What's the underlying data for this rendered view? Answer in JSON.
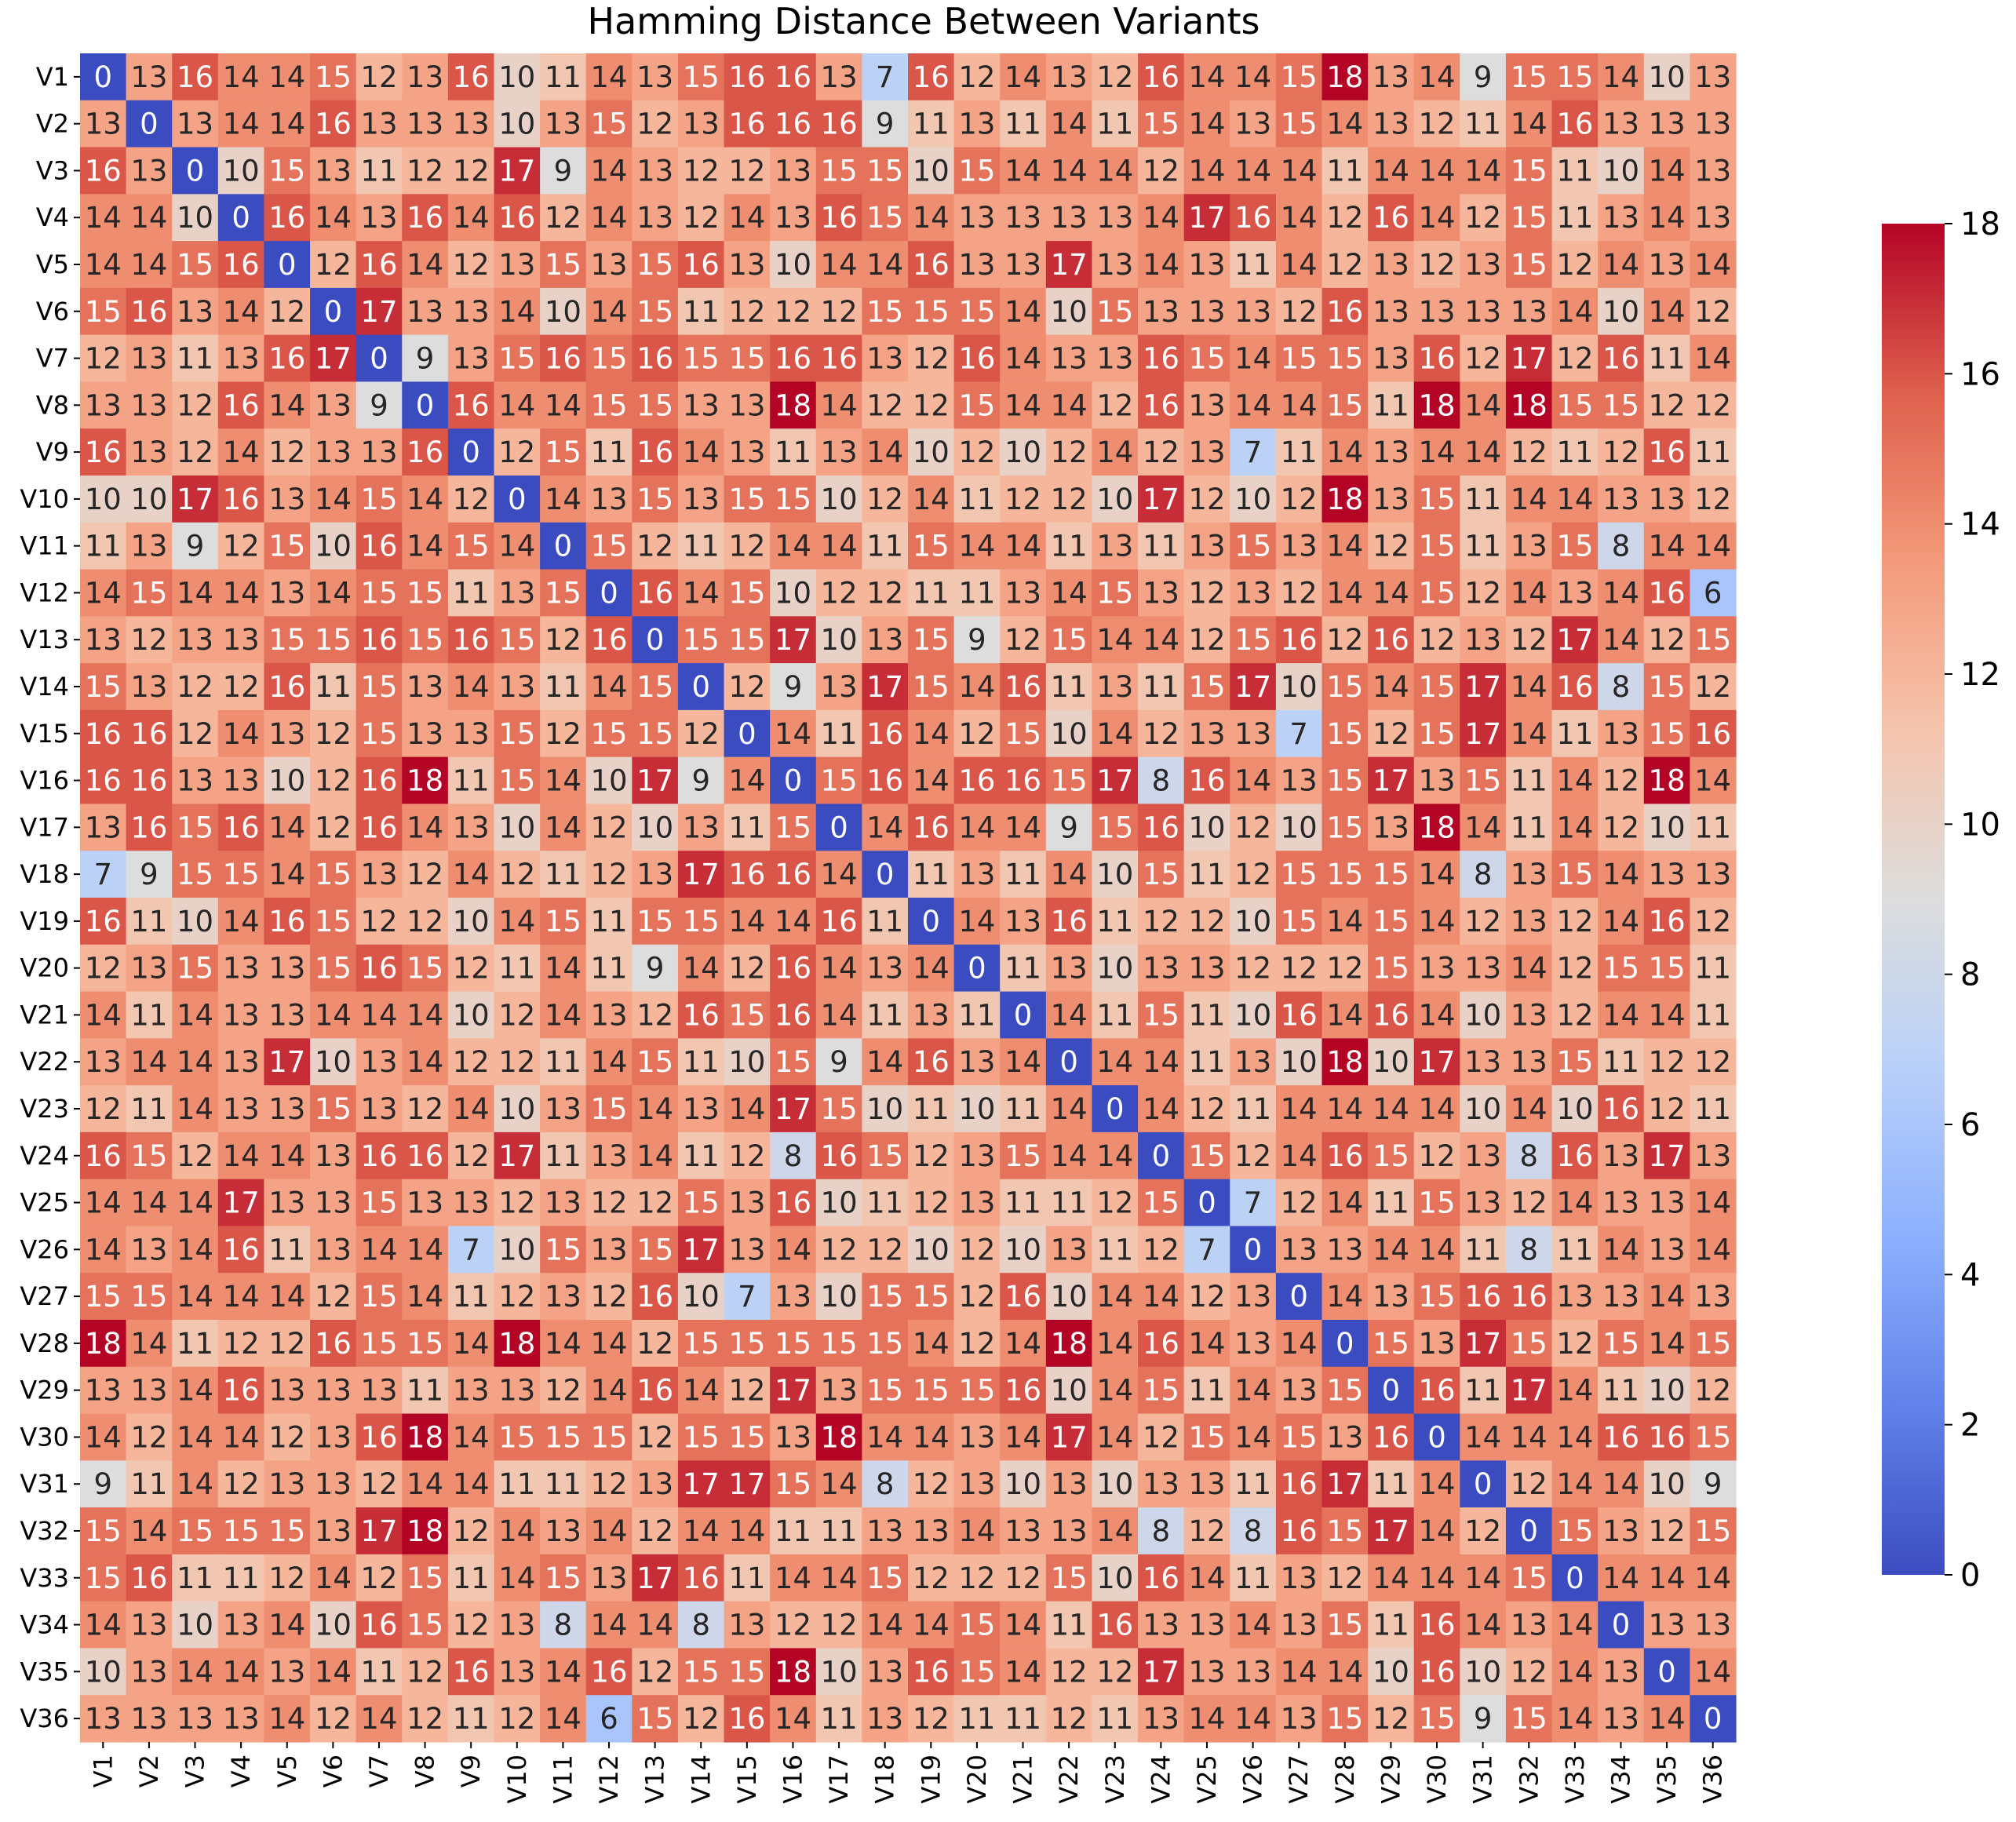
{
  "chart_data": {
    "type": "heatmap",
    "title": "Hamming Distance Between Variants",
    "xlabel": "",
    "ylabel": "",
    "rows": [
      "V1",
      "V2",
      "V3",
      "V4",
      "V5",
      "V6",
      "V7",
      "V8",
      "V9",
      "V10",
      "V11",
      "V12",
      "V13",
      "V14",
      "V15",
      "V16",
      "V17",
      "V18",
      "V19",
      "V20",
      "V21",
      "V22",
      "V23",
      "V24",
      "V25",
      "V26",
      "V27",
      "V28",
      "V29",
      "V30",
      "V31",
      "V32",
      "V33",
      "V34",
      "V35",
      "V36"
    ],
    "columns": [
      "V1",
      "V2",
      "V3",
      "V4",
      "V5",
      "V6",
      "V7",
      "V8",
      "V9",
      "V10",
      "V11",
      "V12",
      "V13",
      "V14",
      "V15",
      "V16",
      "V17",
      "V18",
      "V19",
      "V20",
      "V21",
      "V22",
      "V23",
      "V24",
      "V25",
      "V26",
      "V27",
      "V28",
      "V29",
      "V30",
      "V31",
      "V32",
      "V33",
      "V34",
      "V35",
      "V36"
    ],
    "values": [
      [
        0,
        13,
        16,
        14,
        14,
        15,
        12,
        13,
        16,
        10,
        11,
        14,
        13,
        15,
        16,
        16,
        13,
        7,
        16,
        12,
        14,
        13,
        12,
        16,
        14,
        14,
        15,
        18,
        13,
        14,
        9,
        15,
        15,
        14,
        10,
        13
      ],
      [
        13,
        0,
        13,
        14,
        14,
        16,
        13,
        13,
        13,
        10,
        13,
        15,
        12,
        13,
        16,
        16,
        16,
        9,
        11,
        13,
        11,
        14,
        11,
        15,
        14,
        13,
        15,
        14,
        13,
        12,
        11,
        14,
        16,
        13,
        13,
        13
      ],
      [
        16,
        13,
        0,
        10,
        15,
        13,
        11,
        12,
        12,
        17,
        9,
        14,
        13,
        12,
        12,
        13,
        15,
        15,
        10,
        15,
        14,
        14,
        14,
        12,
        14,
        14,
        14,
        11,
        14,
        14,
        14,
        15,
        11,
        10,
        14,
        13
      ],
      [
        14,
        14,
        10,
        0,
        16,
        14,
        13,
        16,
        14,
        16,
        12,
        14,
        13,
        12,
        14,
        13,
        16,
        15,
        14,
        13,
        13,
        13,
        13,
        14,
        17,
        16,
        14,
        12,
        16,
        14,
        12,
        15,
        11,
        13,
        14,
        13
      ],
      [
        14,
        14,
        15,
        16,
        0,
        12,
        16,
        14,
        12,
        13,
        15,
        13,
        15,
        16,
        13,
        10,
        14,
        14,
        16,
        13,
        13,
        17,
        13,
        14,
        13,
        11,
        14,
        12,
        13,
        12,
        13,
        15,
        12,
        14,
        13,
        14
      ],
      [
        15,
        16,
        13,
        14,
        12,
        0,
        17,
        13,
        13,
        14,
        10,
        14,
        15,
        11,
        12,
        12,
        12,
        15,
        15,
        15,
        14,
        10,
        15,
        13,
        13,
        13,
        12,
        16,
        13,
        13,
        13,
        13,
        14,
        10,
        14,
        12
      ],
      [
        12,
        13,
        11,
        13,
        16,
        17,
        0,
        9,
        13,
        15,
        16,
        15,
        16,
        15,
        15,
        16,
        16,
        13,
        12,
        16,
        14,
        13,
        13,
        16,
        15,
        14,
        15,
        15,
        13,
        16,
        12,
        17,
        12,
        16,
        11,
        14
      ],
      [
        13,
        13,
        12,
        16,
        14,
        13,
        9,
        0,
        16,
        14,
        14,
        15,
        15,
        13,
        13,
        18,
        14,
        12,
        12,
        15,
        14,
        14,
        12,
        16,
        13,
        14,
        14,
        15,
        11,
        18,
        14,
        18,
        15,
        15,
        12,
        12
      ],
      [
        16,
        13,
        12,
        14,
        12,
        13,
        13,
        16,
        0,
        12,
        15,
        11,
        16,
        14,
        13,
        11,
        13,
        14,
        10,
        12,
        10,
        12,
        14,
        12,
        13,
        7,
        11,
        14,
        13,
        14,
        14,
        12,
        11,
        12,
        16,
        11
      ],
      [
        10,
        10,
        17,
        16,
        13,
        14,
        15,
        14,
        12,
        0,
        14,
        13,
        15,
        13,
        15,
        15,
        10,
        12,
        14,
        11,
        12,
        12,
        10,
        17,
        12,
        10,
        12,
        18,
        13,
        15,
        11,
        14,
        14,
        13,
        13,
        12
      ],
      [
        11,
        13,
        9,
        12,
        15,
        10,
        16,
        14,
        15,
        14,
        0,
        15,
        12,
        11,
        12,
        14,
        14,
        11,
        15,
        14,
        14,
        11,
        13,
        11,
        13,
        15,
        13,
        14,
        12,
        15,
        11,
        13,
        15,
        8,
        14,
        14
      ],
      [
        14,
        15,
        14,
        14,
        13,
        14,
        15,
        15,
        11,
        13,
        15,
        0,
        16,
        14,
        15,
        10,
        12,
        12,
        11,
        11,
        13,
        14,
        15,
        13,
        12,
        13,
        12,
        14,
        14,
        15,
        12,
        14,
        13,
        14,
        16,
        6
      ],
      [
        13,
        12,
        13,
        13,
        15,
        15,
        16,
        15,
        16,
        15,
        12,
        16,
        0,
        15,
        15,
        17,
        10,
        13,
        15,
        9,
        12,
        15,
        14,
        14,
        12,
        15,
        16,
        12,
        16,
        12,
        13,
        12,
        17,
        14,
        12,
        15
      ],
      [
        15,
        13,
        12,
        12,
        16,
        11,
        15,
        13,
        14,
        13,
        11,
        14,
        15,
        0,
        12,
        9,
        13,
        17,
        15,
        14,
        16,
        11,
        13,
        11,
        15,
        17,
        10,
        15,
        14,
        15,
        17,
        14,
        16,
        8,
        15,
        12
      ],
      [
        16,
        16,
        12,
        14,
        13,
        12,
        15,
        13,
        13,
        15,
        12,
        15,
        15,
        12,
        0,
        14,
        11,
        16,
        14,
        12,
        15,
        10,
        14,
        12,
        13,
        13,
        7,
        15,
        12,
        15,
        17,
        14,
        11,
        13,
        15,
        16
      ],
      [
        16,
        16,
        13,
        13,
        10,
        12,
        16,
        18,
        11,
        15,
        14,
        10,
        17,
        9,
        14,
        0,
        15,
        16,
        14,
        16,
        16,
        15,
        17,
        8,
        16,
        14,
        13,
        15,
        17,
        13,
        15,
        11,
        14,
        12,
        18,
        14
      ],
      [
        13,
        16,
        15,
        16,
        14,
        12,
        16,
        14,
        13,
        10,
        14,
        12,
        10,
        13,
        11,
        15,
        0,
        14,
        16,
        14,
        14,
        9,
        15,
        16,
        10,
        12,
        10,
        15,
        13,
        18,
        14,
        11,
        14,
        12,
        10,
        11
      ],
      [
        7,
        9,
        15,
        15,
        14,
        15,
        13,
        12,
        14,
        12,
        11,
        12,
        13,
        17,
        16,
        16,
        14,
        0,
        11,
        13,
        11,
        14,
        10,
        15,
        11,
        12,
        15,
        15,
        15,
        14,
        8,
        13,
        15,
        14,
        13,
        13
      ],
      [
        16,
        11,
        10,
        14,
        16,
        15,
        12,
        12,
        10,
        14,
        15,
        11,
        15,
        15,
        14,
        14,
        16,
        11,
        0,
        14,
        13,
        16,
        11,
        12,
        12,
        10,
        15,
        14,
        15,
        14,
        12,
        13,
        12,
        14,
        16,
        12
      ],
      [
        12,
        13,
        15,
        13,
        13,
        15,
        16,
        15,
        12,
        11,
        14,
        11,
        9,
        14,
        12,
        16,
        14,
        13,
        14,
        0,
        11,
        13,
        10,
        13,
        13,
        12,
        12,
        12,
        15,
        13,
        13,
        14,
        12,
        15,
        15,
        11
      ],
      [
        14,
        11,
        14,
        13,
        13,
        14,
        14,
        14,
        10,
        12,
        14,
        13,
        12,
        16,
        15,
        16,
        14,
        11,
        13,
        11,
        0,
        14,
        11,
        15,
        11,
        10,
        16,
        14,
        16,
        14,
        10,
        13,
        12,
        14,
        14,
        11
      ],
      [
        13,
        14,
        14,
        13,
        17,
        10,
        13,
        14,
        12,
        12,
        11,
        14,
        15,
        11,
        10,
        15,
        9,
        14,
        16,
        13,
        14,
        0,
        14,
        14,
        11,
        13,
        10,
        18,
        10,
        17,
        13,
        13,
        15,
        11,
        12,
        12
      ],
      [
        12,
        11,
        14,
        13,
        13,
        15,
        13,
        12,
        14,
        10,
        13,
        15,
        14,
        13,
        14,
        17,
        15,
        10,
        11,
        10,
        11,
        14,
        0,
        14,
        12,
        11,
        14,
        14,
        14,
        14,
        10,
        14,
        10,
        16,
        12,
        11
      ],
      [
        16,
        15,
        12,
        14,
        14,
        13,
        16,
        16,
        12,
        17,
        11,
        13,
        14,
        11,
        12,
        8,
        16,
        15,
        12,
        13,
        15,
        14,
        14,
        0,
        15,
        12,
        14,
        16,
        15,
        12,
        13,
        8,
        16,
        13,
        17,
        13
      ],
      [
        14,
        14,
        14,
        17,
        13,
        13,
        15,
        13,
        13,
        12,
        13,
        12,
        12,
        15,
        13,
        16,
        10,
        11,
        12,
        13,
        11,
        11,
        12,
        15,
        0,
        7,
        12,
        14,
        11,
        15,
        13,
        12,
        14,
        13,
        13,
        14
      ],
      [
        14,
        13,
        14,
        16,
        11,
        13,
        14,
        14,
        7,
        10,
        15,
        13,
        15,
        17,
        13,
        14,
        12,
        12,
        10,
        12,
        10,
        13,
        11,
        12,
        7,
        0,
        13,
        13,
        14,
        14,
        11,
        8,
        11,
        14,
        13,
        14
      ],
      [
        15,
        15,
        14,
        14,
        14,
        12,
        15,
        14,
        11,
        12,
        13,
        12,
        16,
        10,
        7,
        13,
        10,
        15,
        15,
        12,
        16,
        10,
        14,
        14,
        12,
        13,
        0,
        14,
        13,
        15,
        16,
        16,
        13,
        13,
        14,
        13
      ],
      [
        18,
        14,
        11,
        12,
        12,
        16,
        15,
        15,
        14,
        18,
        14,
        14,
        12,
        15,
        15,
        15,
        15,
        15,
        14,
        12,
        14,
        18,
        14,
        16,
        14,
        13,
        14,
        0,
        15,
        13,
        17,
        15,
        12,
        15,
        14,
        15
      ],
      [
        13,
        13,
        14,
        16,
        13,
        13,
        13,
        11,
        13,
        13,
        12,
        14,
        16,
        14,
        12,
        17,
        13,
        15,
        15,
        15,
        16,
        10,
        14,
        15,
        11,
        14,
        13,
        15,
        0,
        16,
        11,
        17,
        14,
        11,
        10,
        12
      ],
      [
        14,
        12,
        14,
        14,
        12,
        13,
        16,
        18,
        14,
        15,
        15,
        15,
        12,
        15,
        15,
        13,
        18,
        14,
        14,
        13,
        14,
        17,
        14,
        12,
        15,
        14,
        15,
        13,
        16,
        0,
        14,
        14,
        14,
        16,
        16,
        15
      ],
      [
        9,
        11,
        14,
        12,
        13,
        13,
        12,
        14,
        14,
        11,
        11,
        12,
        13,
        17,
        17,
        15,
        14,
        8,
        12,
        13,
        10,
        13,
        10,
        13,
        13,
        11,
        16,
        17,
        11,
        14,
        0,
        12,
        14,
        14,
        10,
        9
      ],
      [
        15,
        14,
        15,
        15,
        15,
        13,
        17,
        18,
        12,
        14,
        13,
        14,
        12,
        14,
        14,
        11,
        11,
        13,
        13,
        14,
        13,
        13,
        14,
        8,
        12,
        8,
        16,
        15,
        17,
        14,
        12,
        0,
        15,
        13,
        12,
        15
      ],
      [
        15,
        16,
        11,
        11,
        12,
        14,
        12,
        15,
        11,
        14,
        15,
        13,
        17,
        16,
        11,
        14,
        14,
        15,
        12,
        12,
        12,
        15,
        10,
        16,
        14,
        11,
        13,
        12,
        14,
        14,
        14,
        15,
        0,
        14,
        14,
        14
      ],
      [
        14,
        13,
        10,
        13,
        14,
        10,
        16,
        15,
        12,
        13,
        8,
        14,
        14,
        8,
        13,
        12,
        12,
        14,
        14,
        15,
        14,
        11,
        16,
        13,
        13,
        14,
        13,
        15,
        11,
        16,
        14,
        13,
        14,
        0,
        13,
        13
      ],
      [
        10,
        13,
        14,
        14,
        13,
        14,
        11,
        12,
        16,
        13,
        14,
        16,
        12,
        15,
        15,
        18,
        10,
        13,
        16,
        15,
        14,
        12,
        12,
        17,
        13,
        13,
        14,
        14,
        10,
        16,
        10,
        12,
        14,
        13,
        0,
        14
      ],
      [
        13,
        13,
        13,
        13,
        14,
        12,
        14,
        12,
        11,
        12,
        14,
        6,
        15,
        12,
        16,
        14,
        11,
        13,
        12,
        11,
        11,
        12,
        11,
        13,
        14,
        14,
        13,
        15,
        12,
        15,
        9,
        15,
        14,
        13,
        14,
        0
      ]
    ],
    "colormap": "coolwarm",
    "vmin": 0,
    "vmax": 18,
    "colorbar_ticks": [
      0,
      2,
      4,
      6,
      8,
      10,
      12,
      14,
      16,
      18
    ],
    "annotated": true,
    "grid": false,
    "legend": "colorbar-right"
  }
}
